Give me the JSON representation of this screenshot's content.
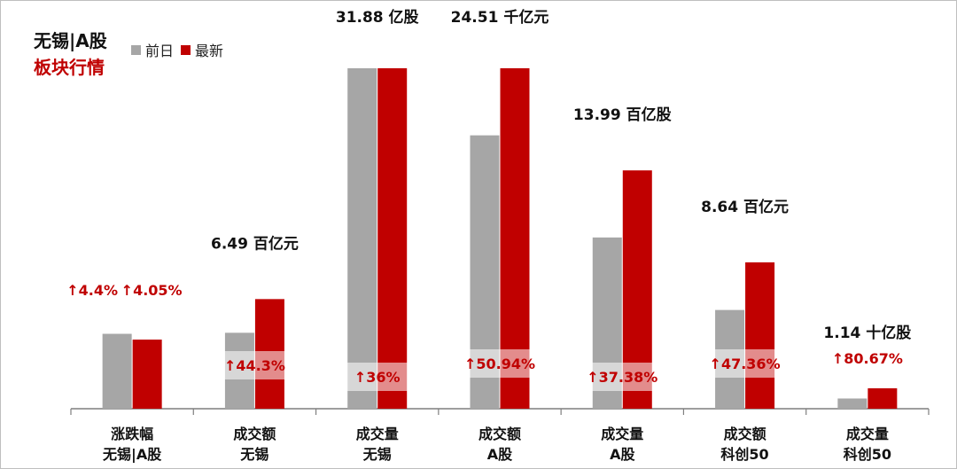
{
  "title": {
    "line1": "无锡|A股",
    "line2": "板块行情"
  },
  "colors": {
    "prev": "#a6a6a6",
    "latest": "#c00000",
    "title_red": "#c00000",
    "value_text": "#111111"
  },
  "chart_data": {
    "type": "bar",
    "legend_position": "top-left",
    "grid": false,
    "series": [
      {
        "name": "前日"
      },
      {
        "name": "最新"
      }
    ],
    "groups": [
      {
        "category": [
          "涨跌幅",
          "无锡|A股"
        ],
        "metric_label": "",
        "prev_change_label": "↑4.4%",
        "change_label": "↑4.05%",
        "prev_fraction": 0.22,
        "latest_fraction": 0.203
      },
      {
        "category": [
          "成交额",
          "无锡"
        ],
        "metric_label": "6.49 百亿元",
        "change_label": "↑44.3%",
        "prev_fraction": 0.223,
        "latest_fraction": 0.322
      },
      {
        "category": [
          "成交量",
          "无锡"
        ],
        "metric_label": "31.88 亿股",
        "change_label": "↑36%",
        "prev_fraction": 1.0,
        "latest_fraction": 1.0
      },
      {
        "category": [
          "成交额",
          "A股"
        ],
        "metric_label": "24.51 千亿元",
        "change_label": "↑50.94%",
        "prev_fraction": 0.803,
        "latest_fraction": 1.0
      },
      {
        "category": [
          "成交量",
          "A股"
        ],
        "metric_label": "13.99 百亿股",
        "change_label": "↑37.38%",
        "prev_fraction": 0.503,
        "latest_fraction": 0.7
      },
      {
        "category": [
          "成交额",
          "科创50"
        ],
        "metric_label": "8.64 百亿元",
        "change_label": "↑47.36%",
        "prev_fraction": 0.29,
        "latest_fraction": 0.43
      },
      {
        "category": [
          "成交量",
          "科创50"
        ],
        "metric_label": "1.14 十亿股",
        "change_label": "↑80.67%",
        "prev_fraction": 0.03,
        "latest_fraction": 0.06
      }
    ]
  }
}
